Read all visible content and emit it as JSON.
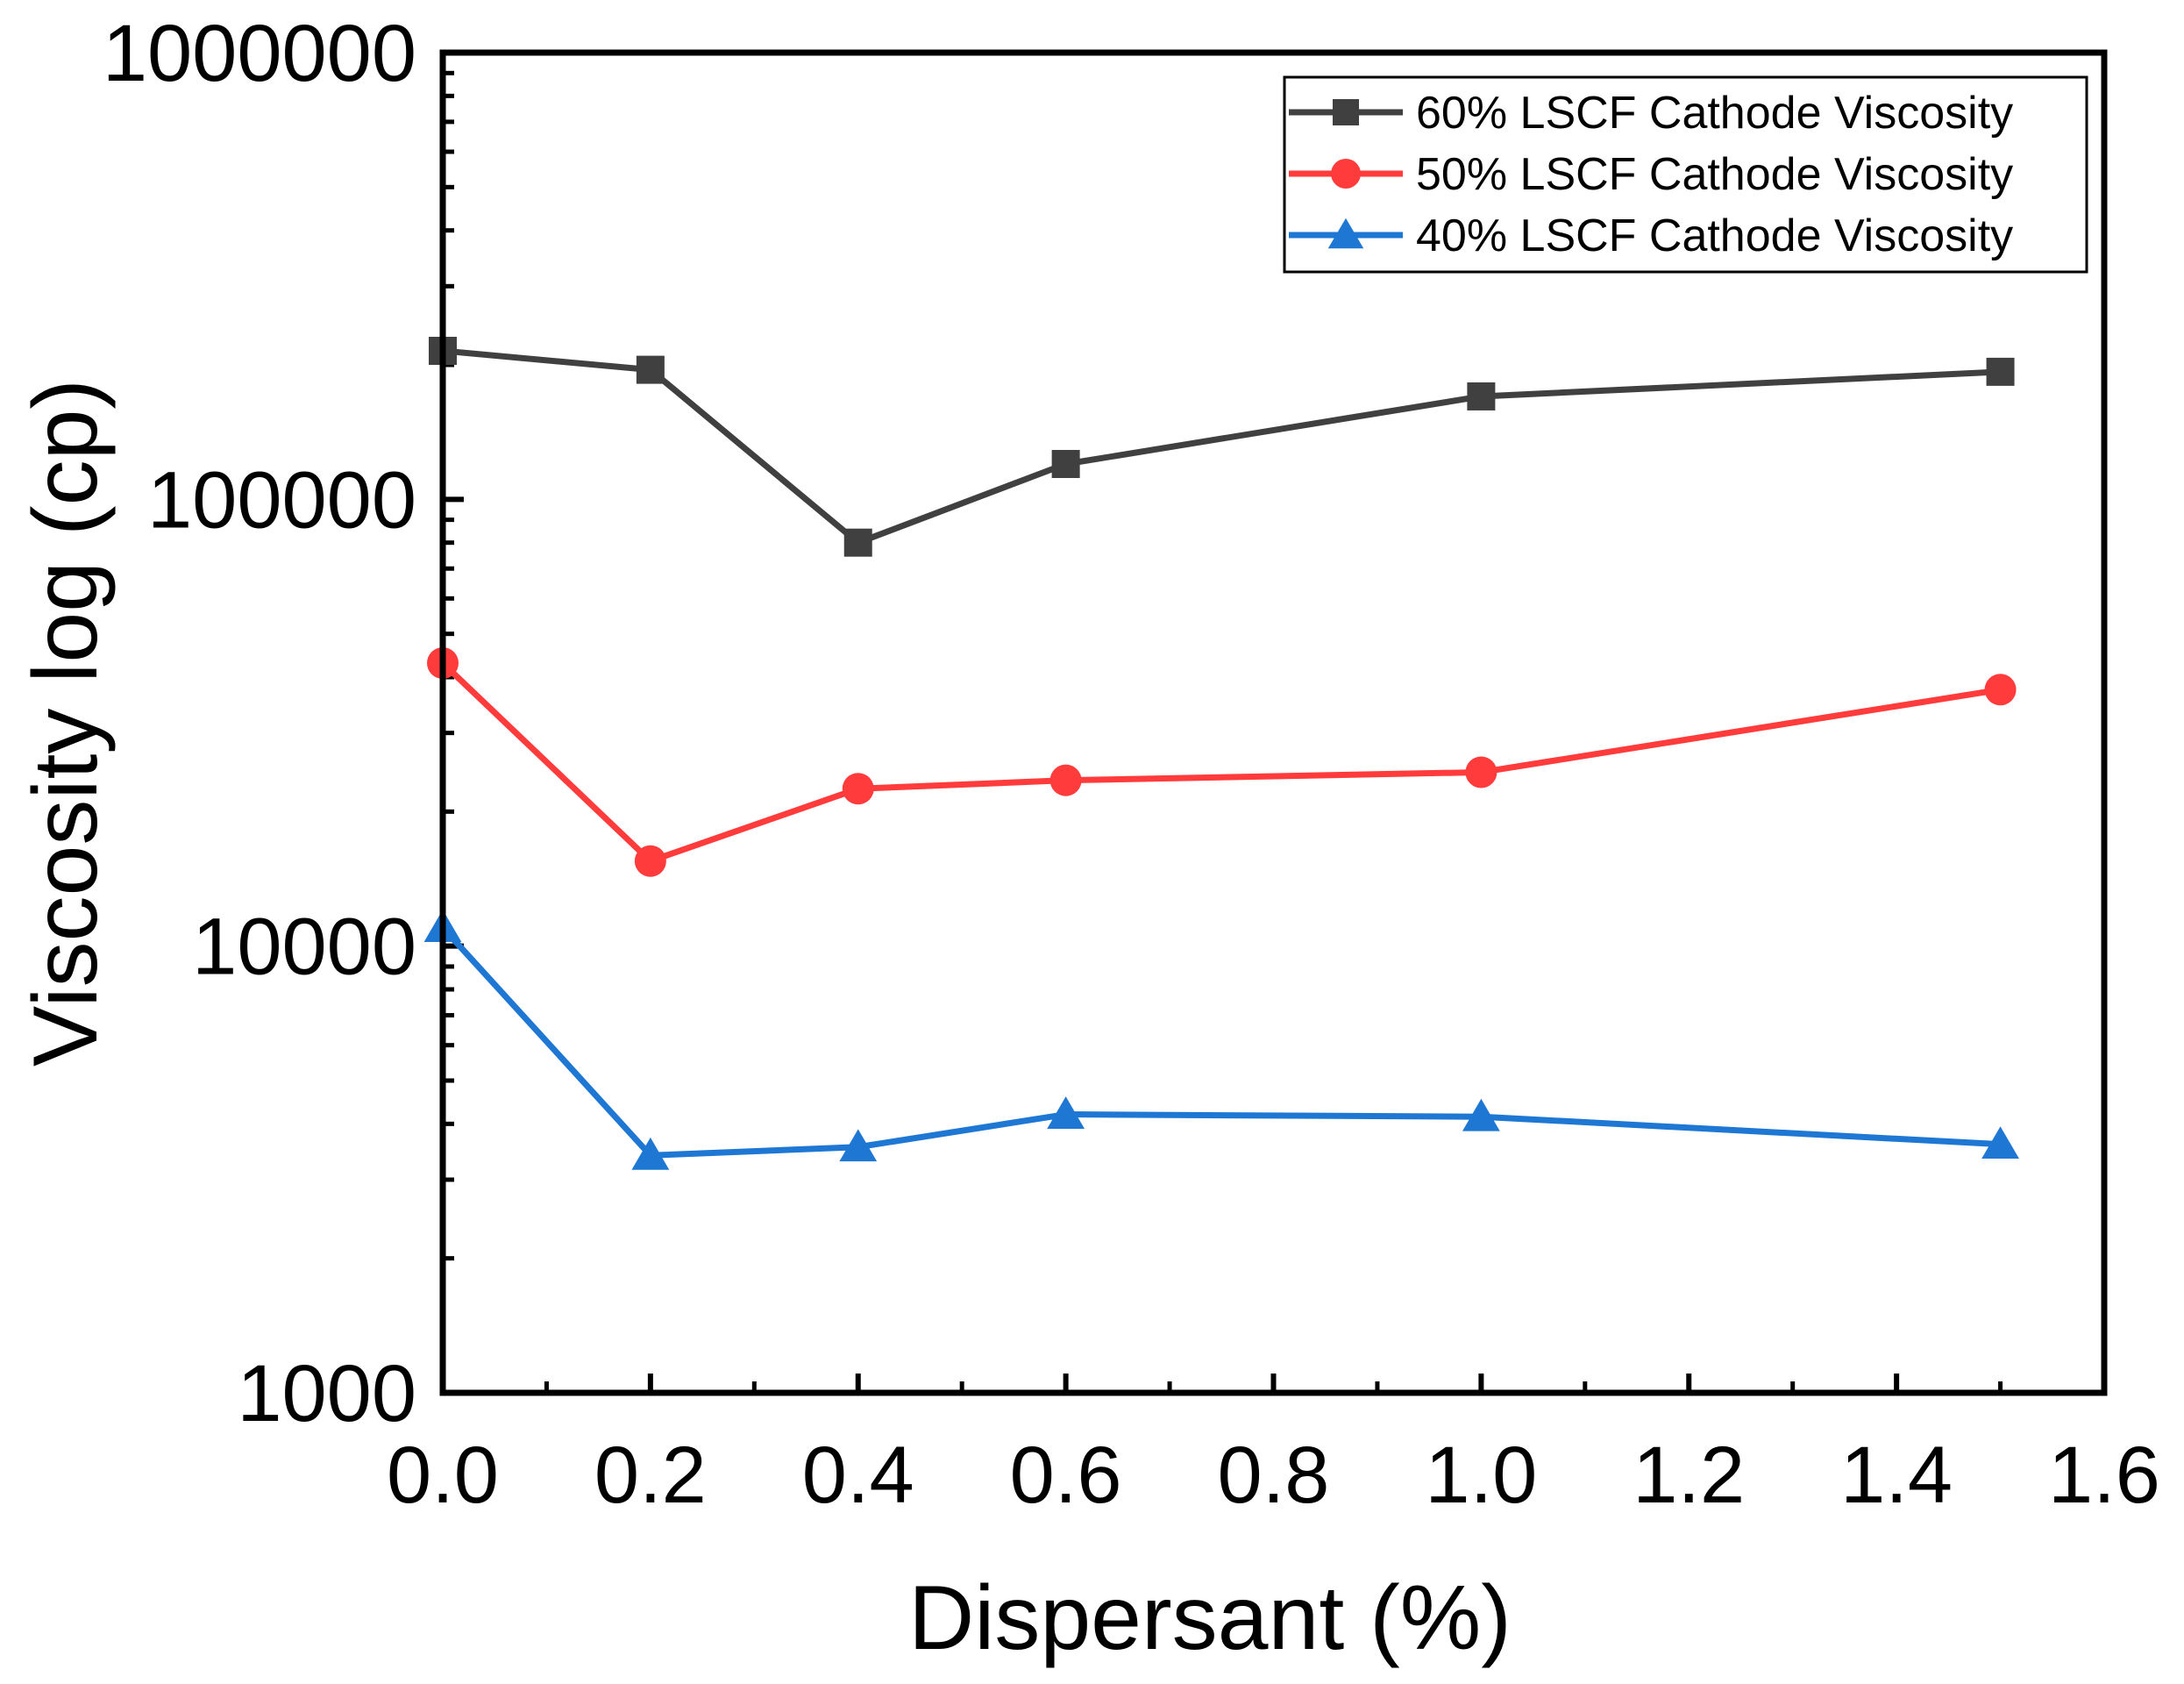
{
  "chart_data": {
    "type": "line",
    "title": "",
    "xlabel": "Dispersant (%)",
    "ylabel": "Viscosity log (cp)",
    "xlim": [
      0.0,
      1.6
    ],
    "ylim": [
      1000,
      1000000
    ],
    "yscale": "log",
    "x_ticks": [
      0.0,
      0.2,
      0.4,
      0.6,
      0.8,
      1.0,
      1.2,
      1.4,
      1.6
    ],
    "x_tick_labels": [
      "0.0",
      "0.2",
      "0.4",
      "0.6",
      "0.8",
      "1.0",
      "1.2",
      "1.4",
      "1.6"
    ],
    "y_ticks": [
      1000,
      10000,
      100000,
      1000000
    ],
    "y_tick_labels": [
      "1000",
      "10000",
      "100000",
      "1000000"
    ],
    "x": [
      0.0,
      0.2,
      0.4,
      0.6,
      1.0,
      1.5
    ],
    "legend_position": "top-right",
    "series": [
      {
        "name": "60% LSCF Cathode Viscosity",
        "color": "#404040",
        "marker": "square",
        "values": [
          215000,
          195000,
          80000,
          120000,
          170000,
          193000
        ]
      },
      {
        "name": "50% LSCF Cathode Viscosity",
        "color": "#ff3b3b",
        "marker": "circle",
        "values": [
          43000,
          15500,
          22500,
          23500,
          24500,
          37500
        ]
      },
      {
        "name": "40% LSCF Cathode Viscosity",
        "color": "#1f77d4",
        "marker": "triangle",
        "values": [
          11000,
          3400,
          3550,
          4200,
          4150,
          3600
        ]
      }
    ]
  }
}
